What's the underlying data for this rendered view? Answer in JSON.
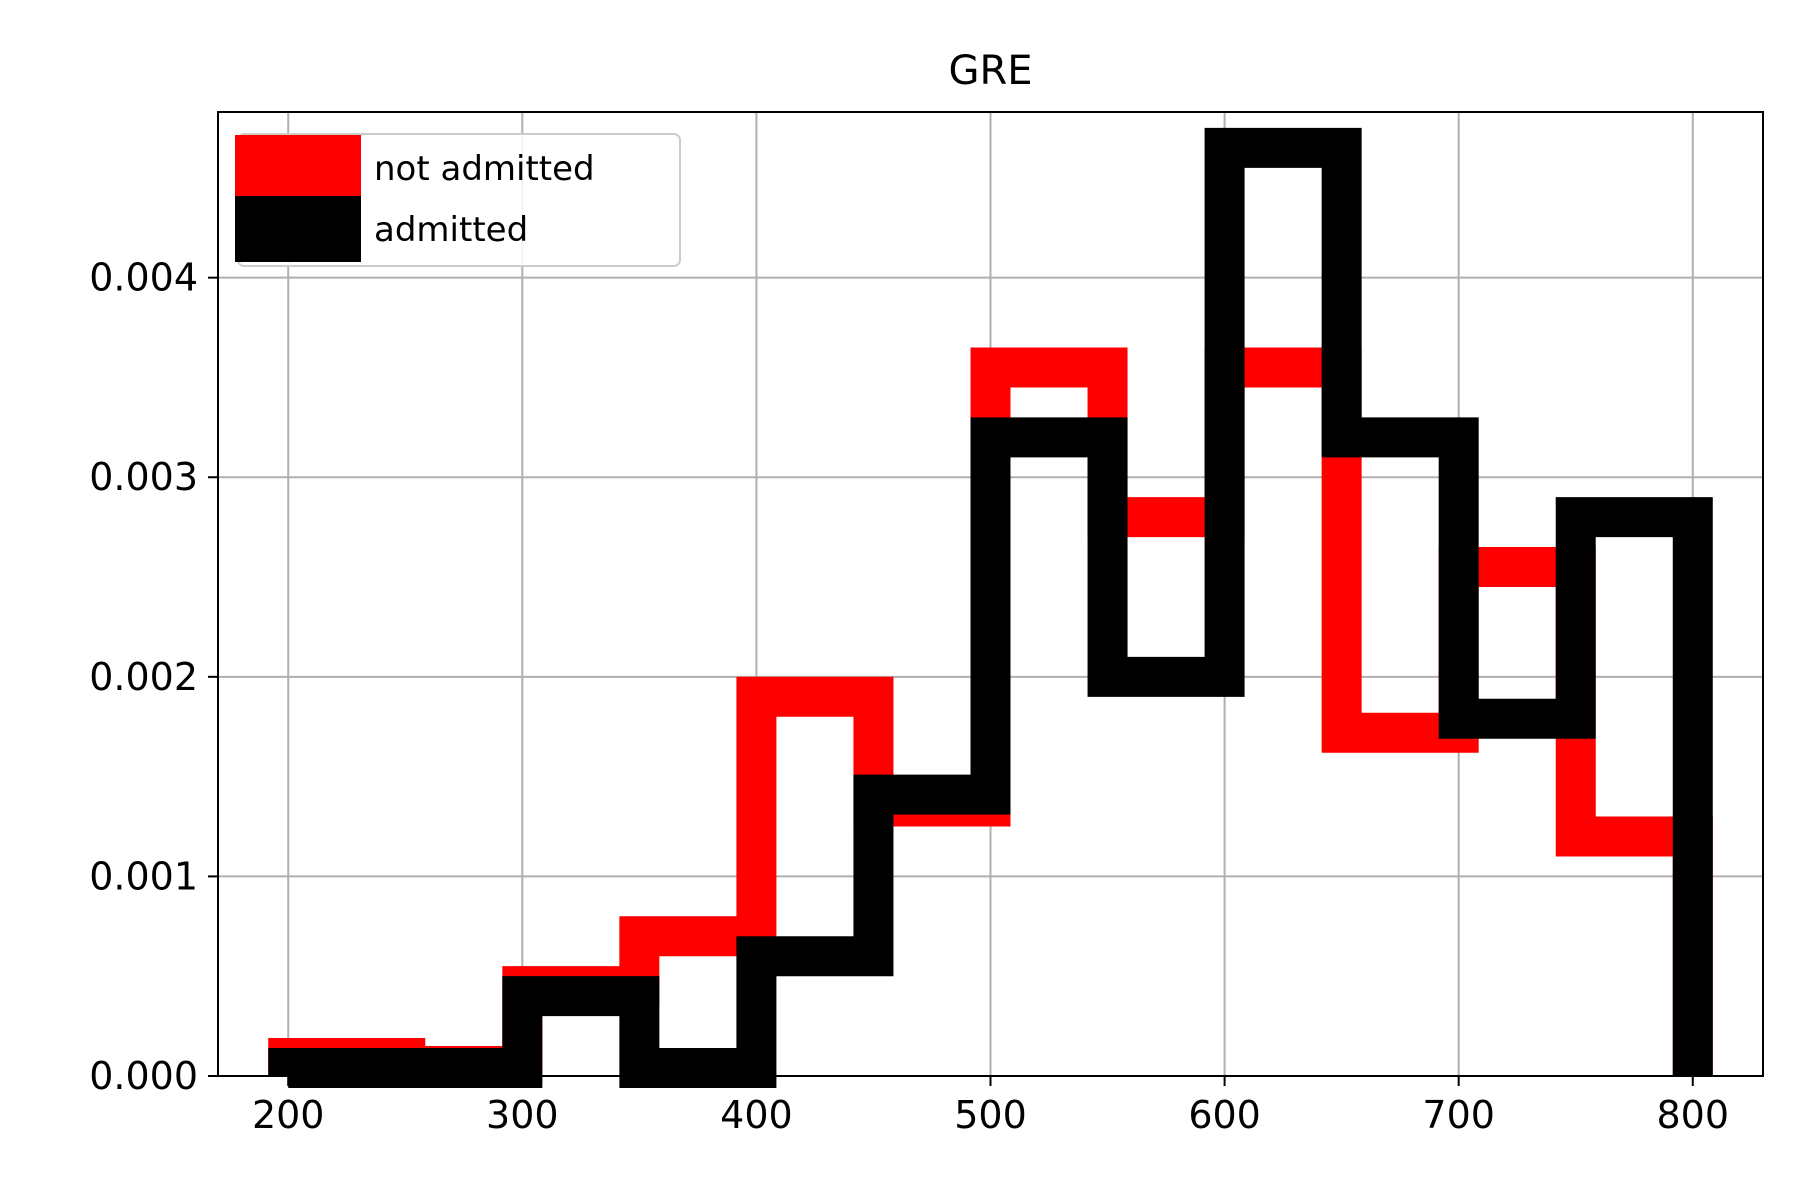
{
  "chart_data": {
    "type": "histogram",
    "title": "GRE",
    "xlabel": "",
    "ylabel": "",
    "xlim": [
      170,
      830
    ],
    "ylim": [
      0,
      0.00483
    ],
    "x_ticks": [
      200,
      300,
      400,
      500,
      600,
      700,
      800
    ],
    "x_tick_labels": [
      "200",
      "300",
      "400",
      "500",
      "600",
      "700",
      "800"
    ],
    "y_ticks": [
      0,
      0.001,
      0.002,
      0.003,
      0.004
    ],
    "y_tick_labels": [
      "0.000",
      "0.001",
      "0.002",
      "0.003",
      "0.004"
    ],
    "grid": true,
    "legend_position": "top-left",
    "bin_width": 50,
    "series": [
      {
        "name": "not admitted",
        "color": "#ff0000",
        "bin_edges": [
          200,
          250,
          300,
          350,
          400,
          450,
          500,
          550,
          600,
          650,
          700,
          750,
          800
        ],
        "values": [
          9e-05,
          5e-05,
          0.00045,
          0.0007,
          0.0019,
          0.00135,
          0.00355,
          0.0028,
          0.00355,
          0.00172,
          0.00255,
          0.0012
        ]
      },
      {
        "name": "admitted",
        "color": "#000000",
        "bin_edges": [
          200,
          250,
          300,
          350,
          400,
          450,
          500,
          550,
          600,
          650,
          700,
          750,
          800
        ],
        "values": [
          4e-05,
          4e-05,
          0.0004,
          4e-05,
          0.0006,
          0.00141,
          0.0032,
          0.002,
          0.00465,
          0.0032,
          0.00179,
          0.0028
        ]
      }
    ]
  }
}
